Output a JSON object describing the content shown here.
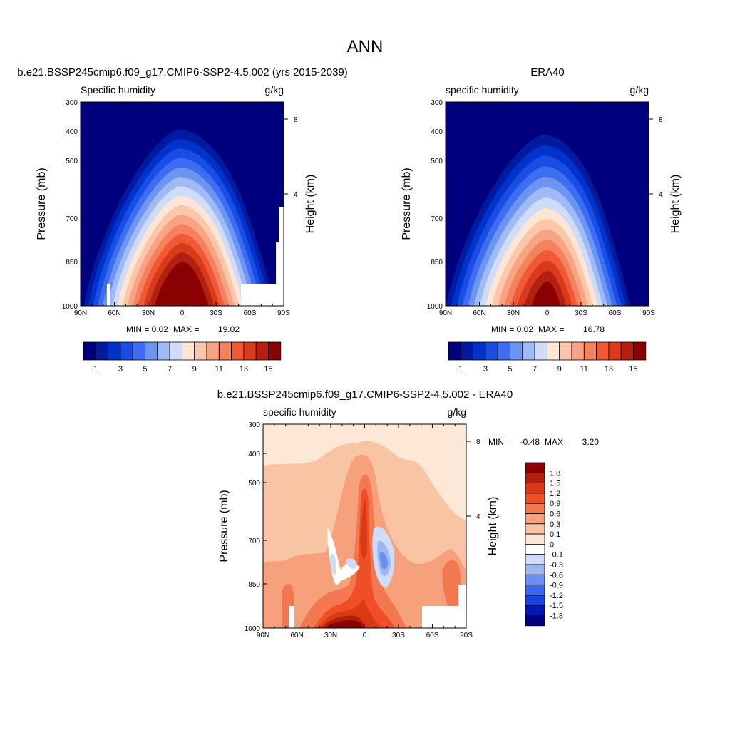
{
  "main_title": "ANN",
  "colors": {
    "seq_scale": [
      "#00007f",
      "#001aa0",
      "#0033cc",
      "#1a4de6",
      "#3d6df2",
      "#6c95f2",
      "#9fbaf4",
      "#cfdcf8",
      "#fde6d5",
      "#fbc7aa",
      "#f7a484",
      "#f5825f",
      "#f05836",
      "#d93a1c",
      "#b2200f",
      "#8b0000"
    ],
    "diff_scale": [
      "#00007f",
      "#0018b0",
      "#1a40e0",
      "#3a66f0",
      "#6a8ef2",
      "#9db7f3",
      "#cfdcf8",
      "#ffffff",
      "#fde8d8",
      "#f9c4a4",
      "#f6a07c",
      "#f3784f",
      "#f04e26",
      "#d83a18",
      "#b31e0b",
      "#8b0000"
    ]
  },
  "chart_data": [
    {
      "type": "heatmap",
      "subtitle": "b.e21.BSSP245cmip6.f09_g17.CMIP6-SSP2-4.5.002 (yrs 2015-2039)",
      "variable": "Specific humidity",
      "units": "g/kg",
      "ylabel": "Pressure (mb)",
      "y2label": "Height (km)",
      "xticks": [
        "90N",
        "60N",
        "30N",
        "0",
        "30S",
        "60S",
        "90S"
      ],
      "yticks": [
        "300",
        "400",
        "500",
        "700",
        "850",
        "1000"
      ],
      "y2ticks": [
        "8",
        "4"
      ],
      "min_label": "MIN =",
      "min_value": "0.02",
      "max_label": "MAX =",
      "max_value": "19.02",
      "colorbar_labels": [
        "1",
        "3",
        "5",
        "7",
        "9",
        "11",
        "13",
        "15"
      ],
      "colorbar_levels": [
        1,
        2,
        3,
        4,
        5,
        6,
        7,
        8,
        9,
        10,
        11,
        12,
        13,
        14,
        15
      ],
      "peak_latitude": 0,
      "peak_value": 19.02
    },
    {
      "type": "heatmap",
      "subtitle": "ERA40",
      "variable": "specific humidity",
      "units": "g/kg",
      "ylabel": "Pressure (mb)",
      "y2label": "Height (km)",
      "xticks": [
        "90N",
        "60N",
        "30N",
        "0",
        "30S",
        "60S",
        "90S"
      ],
      "yticks": [
        "300",
        "400",
        "500",
        "700",
        "850",
        "1000"
      ],
      "y2ticks": [
        "8",
        "4"
      ],
      "min_label": "MIN =",
      "min_value": "0.02",
      "max_label": "MAX =",
      "max_value": "16.78",
      "colorbar_labels": [
        "1",
        "3",
        "5",
        "7",
        "9",
        "11",
        "13",
        "15"
      ],
      "colorbar_levels": [
        1,
        2,
        3,
        4,
        5,
        6,
        7,
        8,
        9,
        10,
        11,
        12,
        13,
        14,
        15
      ],
      "peak_latitude": 0,
      "peak_value": 16.78
    },
    {
      "type": "heatmap",
      "subtitle": "b.e21.BSSP245cmip6.f09_g17.CMIP6-SSP2-4.5.002 - ERA40",
      "variable": "specific humidity",
      "units": "g/kg",
      "ylabel": "Pressure (mb)",
      "y2label": "Height (km)",
      "xticks": [
        "90N",
        "60N",
        "30N",
        "0",
        "30S",
        "60S",
        "90S"
      ],
      "yticks": [
        "300",
        "400",
        "500",
        "700",
        "850",
        "1000"
      ],
      "y2ticks": [
        "8",
        "4"
      ],
      "min_label": "MIN =",
      "min_value": "-0.48",
      "max_label": "MAX =",
      "max_value": "3.20",
      "colorbar_labels": [
        "1.8",
        "1.5",
        "1.2",
        "0.9",
        "0.6",
        "0.3",
        "0.1",
        "0",
        "-0.1",
        "-0.3",
        "-0.6",
        "-0.9",
        "-1.2",
        "-1.5",
        "-1.8"
      ],
      "colorbar_levels": [
        1.8,
        1.5,
        1.2,
        0.9,
        0.6,
        0.3,
        0.1,
        0,
        -0.1,
        -0.3,
        -0.6,
        -0.9,
        -1.2,
        -1.5,
        -1.8
      ]
    }
  ]
}
